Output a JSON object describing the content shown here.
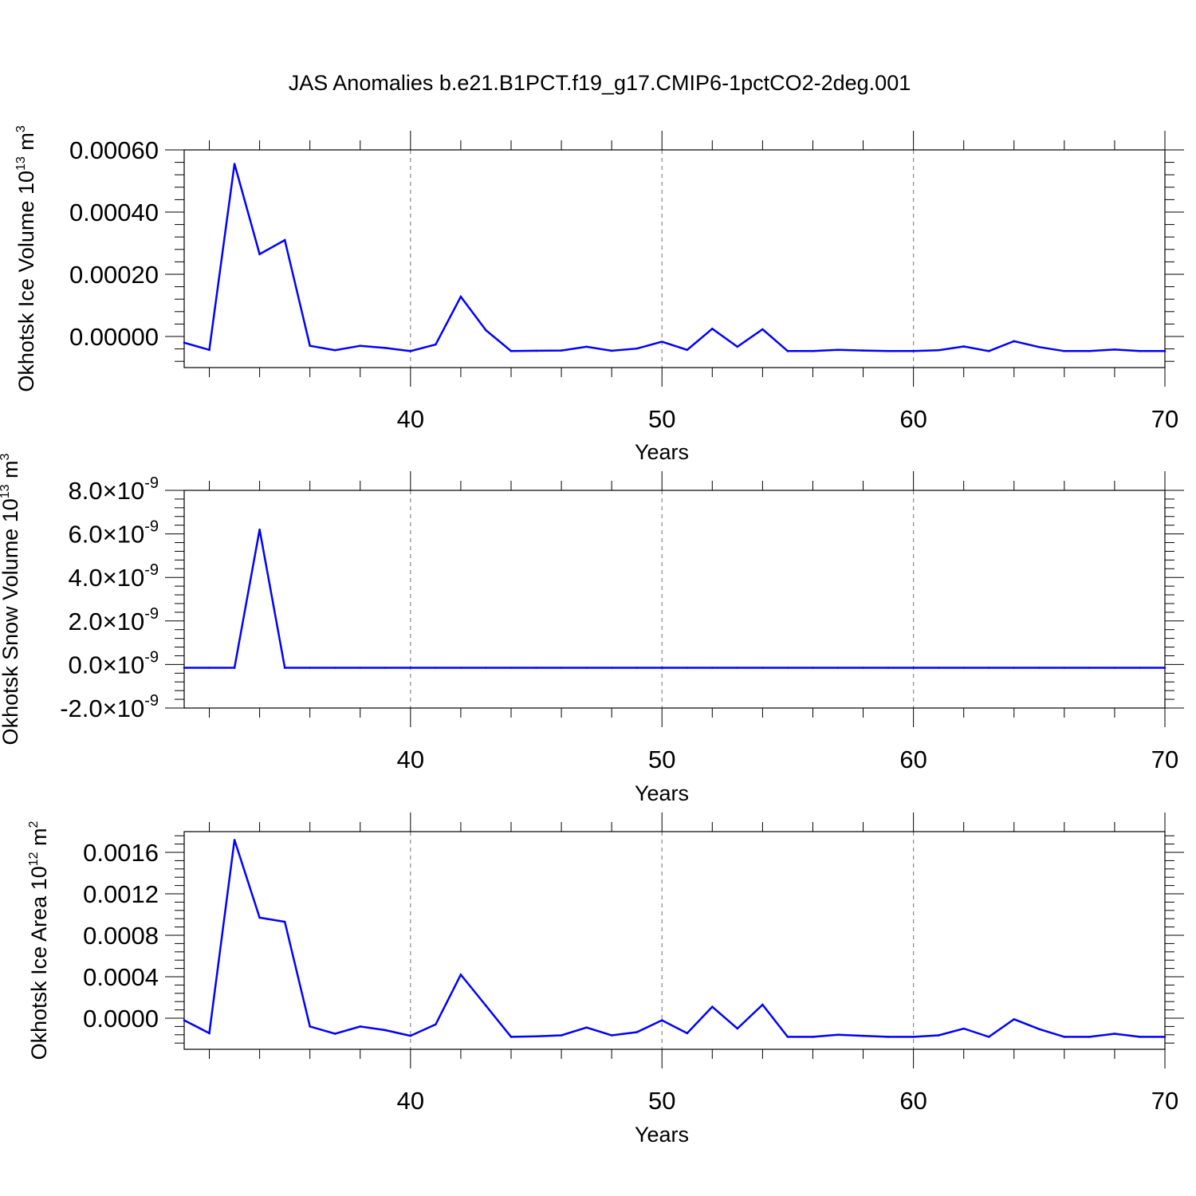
{
  "title": "JAS Anomalies b.e21.B1PCT.f19_g17.CMIP6-1pctCO2-2deg.001",
  "colors": {
    "series": "#0000ff",
    "axis": "#000000",
    "grid": "#888888"
  },
  "chart_data": [
    {
      "type": "line",
      "ylabel": {
        "main": "Okhotsk Ice Volume 10",
        "exp": "13",
        "unit": " m",
        "unit_exp": "3"
      },
      "xlabel": "Years",
      "xlim": [
        31,
        70
      ],
      "ylim": [
        -0.0001,
        0.0006
      ],
      "x_ticks": [
        "40",
        "50",
        "60",
        "70"
      ],
      "y_ticks": [
        {
          "value": 0.0006,
          "label": "0.00060"
        },
        {
          "value": 0.0004,
          "label": "0.00040"
        },
        {
          "value": 0.0002,
          "label": "0.00020"
        },
        {
          "value": 0.0,
          "label": "0.00000"
        }
      ],
      "grid": "vertical dashed at 40, 50, 60",
      "x": [
        31,
        32,
        33,
        34,
        35,
        36,
        37,
        38,
        39,
        40,
        41,
        42,
        43,
        44,
        45,
        46,
        47,
        48,
        49,
        50,
        51,
        52,
        53,
        54,
        55,
        56,
        57,
        58,
        59,
        60,
        61,
        62,
        63,
        64,
        65,
        66,
        67,
        68,
        69,
        70
      ],
      "values": [
        -2e-05,
        -4.3e-05,
        0.000555,
        0.000265,
        0.00031,
        -3e-05,
        -4.4e-05,
        -3e-05,
        -3.7e-05,
        -4.7e-05,
        -2.6e-05,
        0.000128,
        2e-05,
        -4.7e-05,
        -4.6e-05,
        -4.5e-05,
        -3.3e-05,
        -4.6e-05,
        -3.9e-05,
        -1.7e-05,
        -4.3e-05,
        2.5e-05,
        -3.3e-05,
        2.3e-05,
        -4.7e-05,
        -4.7e-05,
        -4.3e-05,
        -4.5e-05,
        -4.7e-05,
        -4.7e-05,
        -4.4e-05,
        -3.2e-05,
        -4.7e-05,
        -1.5e-05,
        -3.4e-05,
        -4.7e-05,
        -4.7e-05,
        -4.2e-05,
        -4.7e-05,
        -4.7e-05
      ]
    },
    {
      "type": "line",
      "ylabel": {
        "main": "Okhotsk Snow Volume 10",
        "exp": "13",
        "unit": " m",
        "unit_exp": "3"
      },
      "xlabel": "Years",
      "xlim": [
        31,
        70
      ],
      "ylim": [
        -2e-09,
        8e-09
      ],
      "x_ticks": [
        "40",
        "50",
        "60",
        "70"
      ],
      "y_ticks": [
        {
          "value": 8e-09,
          "mant": "8.0",
          "times": "×10",
          "exp": "-9"
        },
        {
          "value": 6e-09,
          "mant": "6.0",
          "times": "×10",
          "exp": "-9"
        },
        {
          "value": 4e-09,
          "mant": "4.0",
          "times": "×10",
          "exp": "-9"
        },
        {
          "value": 2e-09,
          "mant": "2.0",
          "times": "×10",
          "exp": "-9"
        },
        {
          "value": 0,
          "mant": "0.0",
          "times": "×10",
          "exp": "-9"
        },
        {
          "value": -2e-09,
          "mant": "-2.0",
          "times": "×10",
          "exp": "-9"
        }
      ],
      "grid": "vertical dashed at 40, 50, 60",
      "x": [
        31,
        32,
        33,
        34,
        35,
        36,
        37,
        38,
        39,
        40,
        41,
        42,
        43,
        44,
        45,
        46,
        47,
        48,
        49,
        50,
        51,
        52,
        53,
        54,
        55,
        56,
        57,
        58,
        59,
        60,
        61,
        62,
        63,
        64,
        65,
        66,
        67,
        68,
        69,
        70
      ],
      "values": [
        -1.5e-10,
        -1.5e-10,
        -1.5e-10,
        6.2e-09,
        -1.5e-10,
        -1.5e-10,
        -1.5e-10,
        -1.5e-10,
        -1.5e-10,
        -1.5e-10,
        -1.5e-10,
        -1.5e-10,
        -1.5e-10,
        -1.5e-10,
        -1.5e-10,
        -1.5e-10,
        -1.5e-10,
        -1.5e-10,
        -1.5e-10,
        -1.5e-10,
        -1.5e-10,
        -1.5e-10,
        -1.5e-10,
        -1.5e-10,
        -1.5e-10,
        -1.5e-10,
        -1.5e-10,
        -1.5e-10,
        -1.5e-10,
        -1.5e-10,
        -1.5e-10,
        -1.5e-10,
        -1.5e-10,
        -1.5e-10,
        -1.5e-10,
        -1.5e-10,
        -1.5e-10,
        -1.5e-10,
        -1.5e-10,
        -1.5e-10
      ]
    },
    {
      "type": "line",
      "ylabel": {
        "main": "Okhotsk Ice Area 10",
        "exp": "12",
        "unit": " m",
        "unit_exp": "2"
      },
      "xlabel": "Years",
      "xlim": [
        31,
        70
      ],
      "ylim": [
        -0.0003,
        0.0018
      ],
      "x_ticks": [
        "40",
        "50",
        "60",
        "70"
      ],
      "y_ticks": [
        {
          "value": 0.0016,
          "label": "0.0016"
        },
        {
          "value": 0.0012,
          "label": "0.0012"
        },
        {
          "value": 0.0008,
          "label": "0.0008"
        },
        {
          "value": 0.0004,
          "label": "0.0004"
        },
        {
          "value": 0.0,
          "label": "0.0000"
        }
      ],
      "grid": "vertical dashed at 40, 50, 60",
      "x": [
        31,
        32,
        33,
        34,
        35,
        36,
        37,
        38,
        39,
        40,
        41,
        42,
        43,
        44,
        45,
        46,
        47,
        48,
        49,
        50,
        51,
        52,
        53,
        54,
        55,
        56,
        57,
        58,
        59,
        60,
        61,
        62,
        63,
        64,
        65,
        66,
        67,
        68,
        69,
        70
      ],
      "values": [
        -2e-05,
        -0.000145,
        0.00172,
        0.00097,
        0.00093,
        -8e-05,
        -0.00015,
        -8e-05,
        -0.000115,
        -0.00017,
        -6e-05,
        0.00042,
        0.00012,
        -0.00018,
        -0.000175,
        -0.000165,
        -9e-05,
        -0.000165,
        -0.000135,
        -2e-05,
        -0.000145,
        0.00011,
        -0.0001,
        0.00013,
        -0.00018,
        -0.00018,
        -0.00016,
        -0.00017,
        -0.00018,
        -0.00018,
        -0.000165,
        -0.0001,
        -0.00018,
        -1e-05,
        -0.000105,
        -0.00018,
        -0.00018,
        -0.00015,
        -0.00018,
        -0.00018
      ]
    }
  ]
}
